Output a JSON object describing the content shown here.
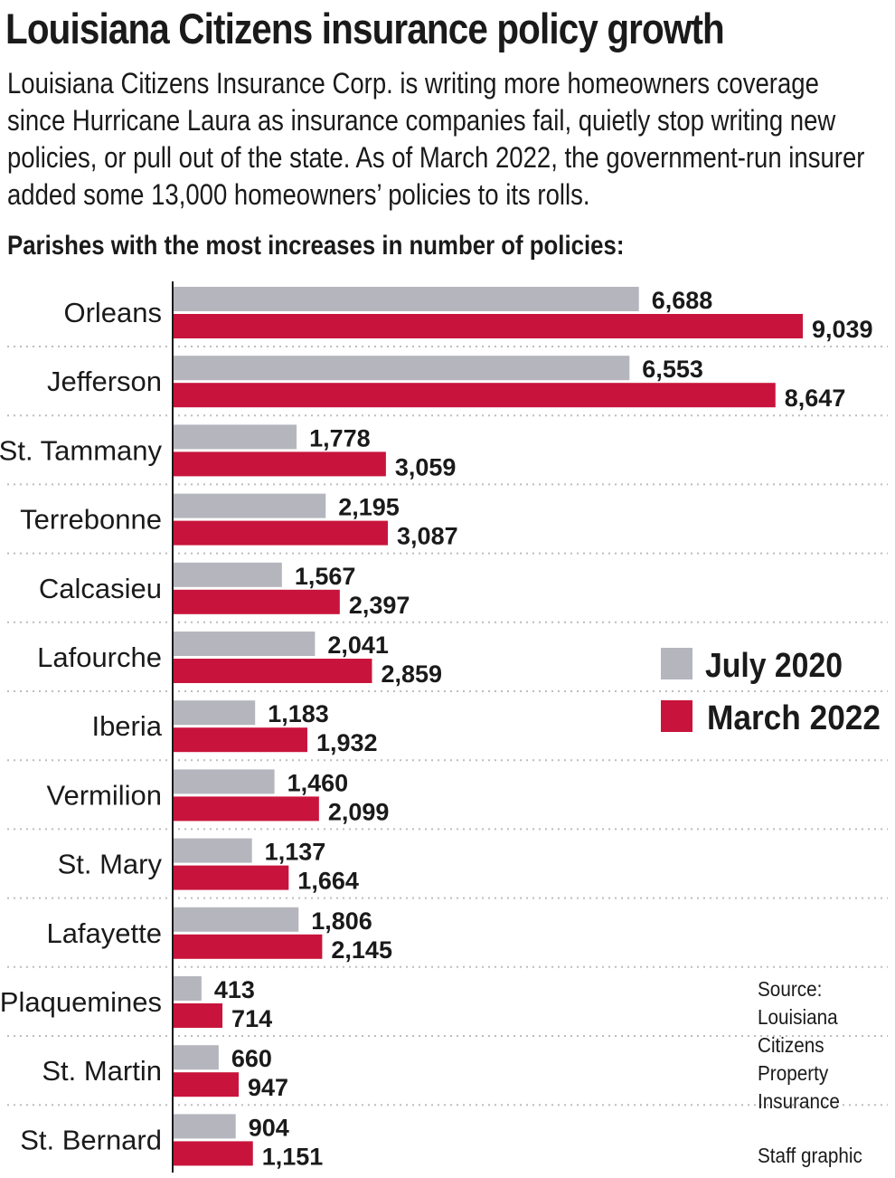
{
  "title": "Louisiana Citizens insurance policy growth",
  "subtitle": "Louisiana Citizens Insurance Corp. is writing more homeowners coverage since Hurricane Laura as insurance companies fail, quietly stop writing new policies, or pull out of the state. As of March 2022, the government-run insurer added some 13,000 homeowners’ policies to its rolls.",
  "chart_heading": "Parishes with the most increases in number of policies:",
  "colors": {
    "july_2020": "#b5b6bd",
    "march_2022": "#c8143c",
    "text": "#1a1a1a",
    "grid": "#bdbdbd"
  },
  "chart_data": {
    "type": "bar",
    "orientation": "horizontal",
    "categories": [
      "Orleans",
      "Jefferson",
      "St. Tammany",
      "Terrebonne",
      "Calcasieu",
      "Lafourche",
      "Iberia",
      "Vermilion",
      "St. Mary",
      "Lafayette",
      "Plaquemines",
      "St. Martin",
      "St. Bernard"
    ],
    "series": [
      {
        "name": "July 2020",
        "values": [
          6688,
          6553,
          1778,
          2195,
          1567,
          2041,
          1183,
          1460,
          1137,
          1806,
          413,
          660,
          904
        ],
        "labels": [
          "6,688",
          "6,553",
          "1,778",
          "2,195",
          "1,567",
          "2,041",
          "1,183",
          "1,460",
          "1,137",
          "1,806",
          "413",
          "660",
          "904"
        ]
      },
      {
        "name": "March 2022",
        "values": [
          9039,
          8647,
          3059,
          3087,
          2397,
          2859,
          1932,
          2099,
          1664,
          2145,
          714,
          947,
          1151
        ],
        "labels": [
          "9,039",
          "8,647",
          "3,059",
          "3,087",
          "2,397",
          "2,859",
          "1,932",
          "2,099",
          "1,664",
          "2,145",
          "714",
          "947",
          "1,151"
        ]
      }
    ],
    "legend": "right",
    "grid": "dotted row separators"
  },
  "source": {
    "lines": [
      "Source:",
      "Louisiana",
      "Citizens",
      "Property",
      "Insurance"
    ],
    "credit": "Staff graphic"
  }
}
